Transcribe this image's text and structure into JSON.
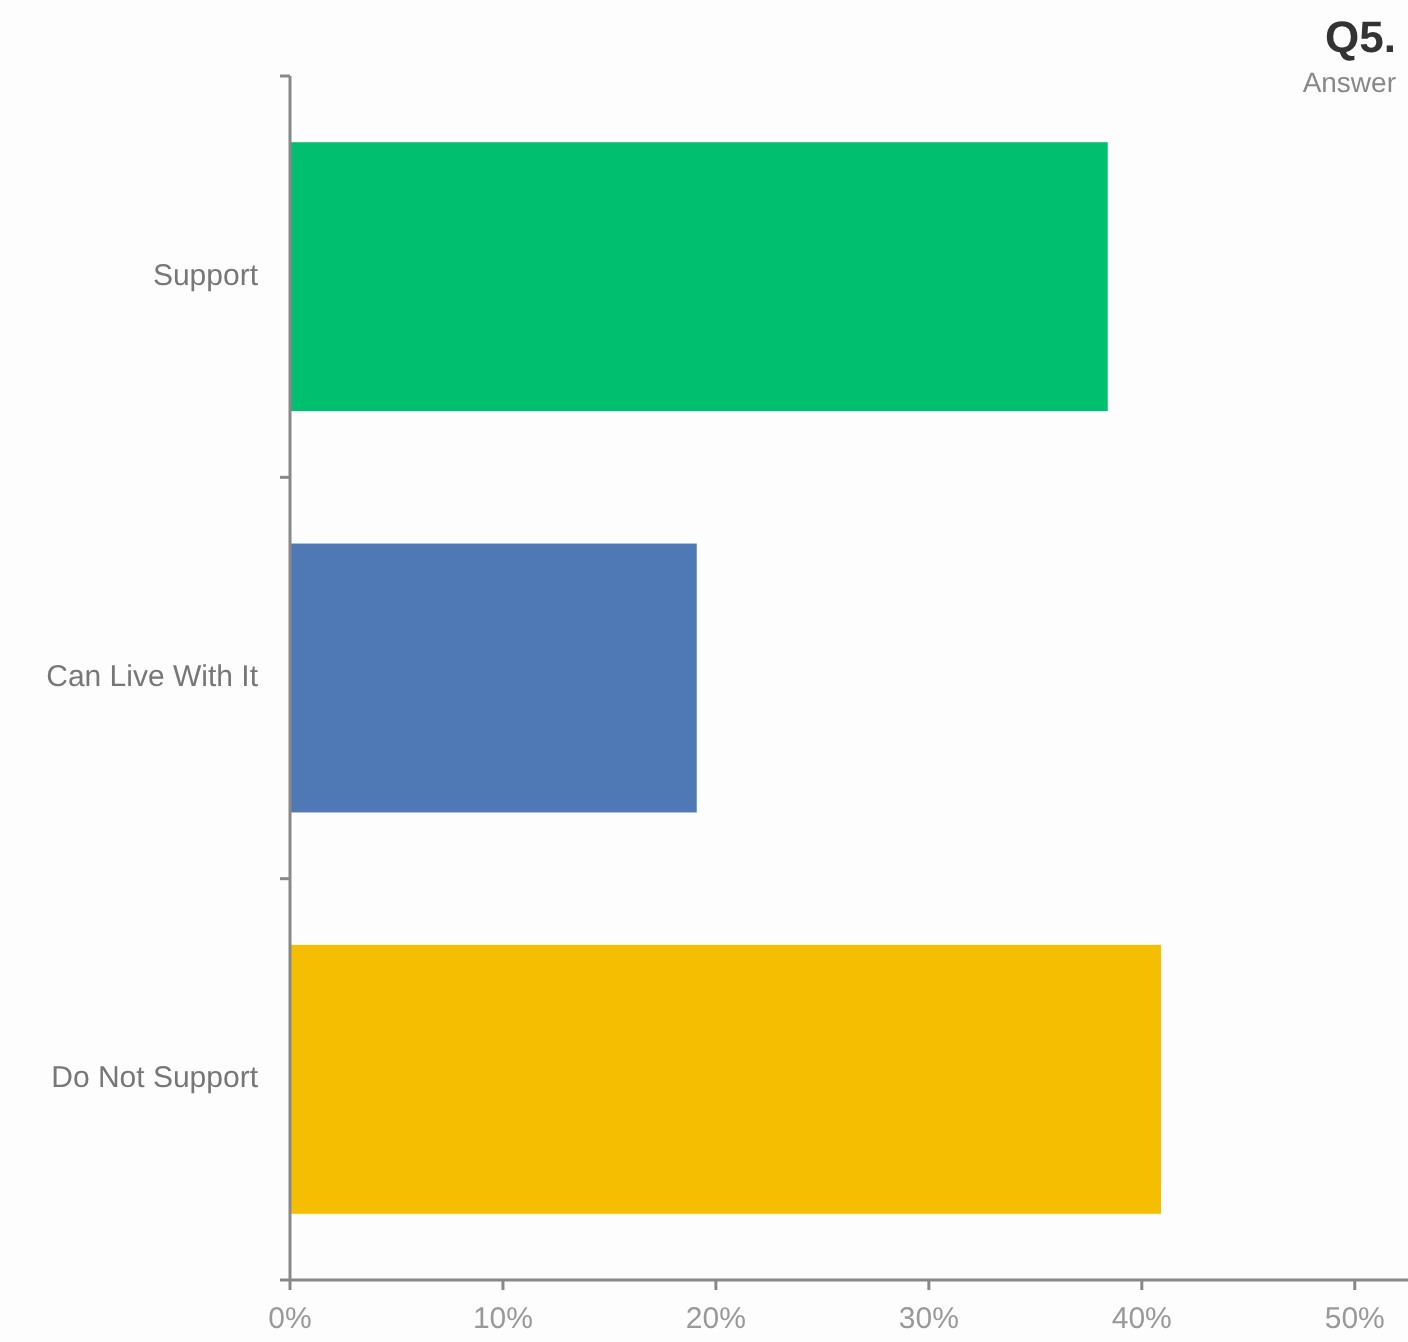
{
  "chart_data": {
    "type": "bar",
    "orientation": "horizontal",
    "title": "Q5.",
    "subtitle": "Answer",
    "categories": [
      "Support",
      "Can Live With It",
      "Do Not Support"
    ],
    "values": [
      38.4,
      19.1,
      40.9
    ],
    "colors": [
      "#00bf6f",
      "#4f79b4",
      "#f5be00"
    ],
    "xlim": [
      0,
      52.5
    ],
    "xticks": [
      {
        "value": 0,
        "label": "0%"
      },
      {
        "value": 10,
        "label": "10%"
      },
      {
        "value": 20,
        "label": "20%"
      },
      {
        "value": 30,
        "label": "30%"
      },
      {
        "value": 40,
        "label": "40%"
      },
      {
        "value": 50,
        "label": "50%"
      }
    ],
    "grid": false
  }
}
